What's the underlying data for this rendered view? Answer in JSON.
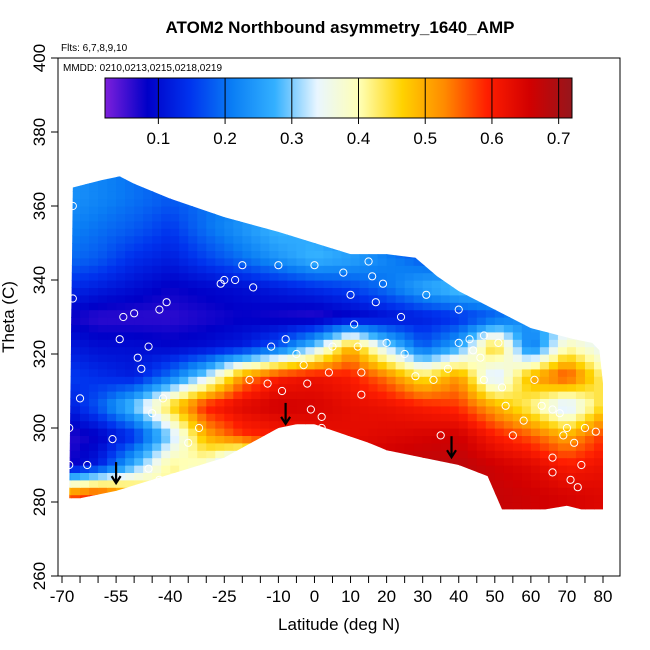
{
  "chart_data": {
    "type": "heatmap",
    "title": "ATOM2 Northbound asymmetry_1640_AMP",
    "flights_label": "Flts: 6,7,8,9,10",
    "dates_label": "MMDD: 0210,0213,0215,0218,0219",
    "xlabel": "Latitude (deg N)",
    "ylabel": "Theta (C)",
    "xlim": [
      -70,
      80
    ],
    "ylim": [
      260,
      400
    ],
    "x_ticks": [
      "-70",
      "-55",
      "-40",
      "-25",
      "-10",
      "0",
      "10",
      "20",
      "30",
      "40",
      "50",
      "60",
      "70",
      "80"
    ],
    "x_tick_values": [
      -70,
      -55,
      -40,
      -25,
      -10,
      0,
      10,
      20,
      30,
      40,
      50,
      60,
      70,
      80
    ],
    "x_minor_ticks": [
      -65,
      -60,
      -50,
      -45,
      -35,
      -30,
      -20,
      -15,
      -5,
      5,
      15,
      25,
      35,
      45,
      55,
      65,
      75
    ],
    "y_ticks": [
      "260",
      "280",
      "300",
      "320",
      "340",
      "360",
      "380",
      "400"
    ],
    "y_tick_values": [
      260,
      280,
      300,
      320,
      340,
      360,
      380,
      400
    ],
    "colorbar": {
      "range": [
        0.02,
        0.72
      ],
      "ticks": [
        "0.1",
        "0.2",
        "0.3",
        "0.4",
        "0.5",
        "0.6",
        "0.7"
      ],
      "tick_values": [
        0.1,
        0.2,
        0.3,
        0.4,
        0.5,
        0.6,
        0.7
      ],
      "color_stops": [
        "#7d1fdb",
        "#0000c8",
        "#0033ee",
        "#0a7ef5",
        "#33b0ff",
        "#e9f6ff",
        "#ffffb4",
        "#ffd200",
        "#ff8a00",
        "#ff1e00",
        "#d20000",
        "#96161c"
      ]
    },
    "domain": {
      "top": [
        [
          -67,
          365
        ],
        [
          -59,
          367
        ],
        [
          -54,
          368
        ],
        [
          -50,
          366
        ],
        [
          -40,
          362
        ],
        [
          -25,
          357
        ],
        [
          -10,
          353
        ],
        [
          0,
          350
        ],
        [
          10,
          347
        ],
        [
          20,
          347
        ],
        [
          28,
          346
        ],
        [
          34,
          341
        ],
        [
          40,
          337
        ],
        [
          50,
          332
        ],
        [
          60,
          327
        ],
        [
          72,
          324
        ],
        [
          77,
          323
        ],
        [
          79,
          321
        ],
        [
          80,
          312
        ]
      ],
      "bottom": [
        [
          80,
          278
        ],
        [
          74,
          278
        ],
        [
          70,
          279
        ],
        [
          64,
          278
        ],
        [
          52,
          278
        ],
        [
          48,
          287
        ],
        [
          40,
          290
        ],
        [
          30,
          292
        ],
        [
          20,
          294
        ],
        [
          15,
          296
        ],
        [
          9,
          298
        ],
        [
          0,
          301
        ],
        [
          -5,
          301
        ],
        [
          -10,
          300
        ],
        [
          -25,
          292
        ],
        [
          -35,
          289
        ],
        [
          -45,
          286
        ],
        [
          -55,
          283
        ],
        [
          -65,
          281
        ],
        [
          -68,
          281
        ]
      ]
    },
    "field_bands": [
      {
        "theta": 362,
        "values": [
          0.24,
          0.22,
          0.2,
          0.18,
          0.2,
          0.22,
          0.2,
          0.18,
          0.16,
          0.14,
          0.12,
          0.1,
          0.1,
          0.1,
          0.1,
          0.1
        ]
      },
      {
        "theta": 354,
        "values": [
          0.22,
          0.2,
          0.18,
          0.15,
          0.2,
          0.24,
          0.28,
          0.26,
          0.2,
          0.16,
          0.12,
          0.1,
          0.1,
          0.1,
          0.1,
          0.1
        ]
      },
      {
        "theta": 346,
        "values": [
          0.2,
          0.18,
          0.14,
          0.12,
          0.16,
          0.2,
          0.24,
          0.28,
          0.26,
          0.22,
          0.18,
          0.14,
          0.12,
          0.1,
          0.1,
          0.1
        ]
      },
      {
        "theta": 338,
        "values": [
          0.14,
          0.12,
          0.1,
          0.08,
          0.09,
          0.1,
          0.12,
          0.14,
          0.16,
          0.2,
          0.26,
          0.3,
          0.28,
          0.2,
          0.16,
          0.14
        ]
      },
      {
        "theta": 330,
        "values": [
          0.08,
          0.06,
          0.06,
          0.06,
          0.07,
          0.08,
          0.07,
          0.06,
          0.08,
          0.1,
          0.12,
          0.14,
          0.18,
          0.24,
          0.3,
          0.32
        ]
      },
      {
        "theta": 322,
        "values": [
          0.12,
          0.1,
          0.1,
          0.09,
          0.1,
          0.12,
          0.18,
          0.3,
          0.5,
          0.32,
          0.18,
          0.26,
          0.48,
          0.2,
          0.4,
          0.34
        ]
      },
      {
        "theta": 314,
        "values": [
          0.16,
          0.14,
          0.12,
          0.2,
          0.32,
          0.52,
          0.6,
          0.62,
          0.6,
          0.54,
          0.44,
          0.52,
          0.3,
          0.5,
          0.58,
          0.42
        ]
      },
      {
        "theta": 306,
        "values": [
          0.1,
          0.18,
          0.3,
          0.46,
          0.6,
          0.64,
          0.66,
          0.65,
          0.63,
          0.62,
          0.6,
          0.58,
          0.5,
          0.42,
          0.3,
          0.46
        ]
      },
      {
        "theta": 298,
        "values": [
          0.06,
          0.08,
          0.14,
          0.3,
          0.5,
          0.58,
          0.6,
          0.62,
          0.63,
          0.64,
          0.65,
          0.66,
          0.6,
          0.56,
          0.5,
          0.58
        ]
      },
      {
        "theta": 290,
        "values": [
          0.06,
          0.12,
          0.28,
          0.42,
          0.38,
          0.2,
          0.52,
          0.64,
          0.66,
          0.67,
          0.68,
          0.68,
          0.66,
          0.64,
          0.6,
          0.62
        ]
      },
      {
        "theta": 282,
        "values": [
          0.55,
          0.6,
          0.5,
          0.4,
          0.3,
          0.2,
          0.4,
          0.6,
          0.65,
          0.67,
          0.68,
          0.68,
          0.67,
          0.66,
          0.65,
          0.64
        ]
      }
    ],
    "field_lats": [
      -70,
      -60,
      -50,
      -40,
      -30,
      -20,
      -10,
      0,
      10,
      20,
      30,
      40,
      50,
      60,
      70,
      80
    ],
    "sample_points": [
      [
        -67,
        360
      ],
      [
        -67,
        335
      ],
      [
        -68,
        300
      ],
      [
        -65,
        308
      ],
      [
        -68,
        290
      ],
      [
        -63,
        290
      ],
      [
        -56,
        297
      ],
      [
        -53,
        330
      ],
      [
        -50,
        331
      ],
      [
        -54,
        324
      ],
      [
        -48,
        316
      ],
      [
        -49,
        319
      ],
      [
        -46,
        322
      ],
      [
        -43,
        332
      ],
      [
        -41,
        334
      ],
      [
        -42,
        308
      ],
      [
        -45,
        304
      ],
      [
        -46,
        289
      ],
      [
        -43,
        286
      ],
      [
        -35,
        296
      ],
      [
        -32,
        300
      ],
      [
        -26,
        339
      ],
      [
        -25,
        340
      ],
      [
        -22,
        340
      ],
      [
        -20,
        344
      ],
      [
        -17,
        338
      ],
      [
        -18,
        313
      ],
      [
        -13,
        312
      ],
      [
        -10,
        344
      ],
      [
        -8,
        324
      ],
      [
        -12,
        322
      ],
      [
        -5,
        320
      ],
      [
        -9,
        310
      ],
      [
        -3,
        317
      ],
      [
        0,
        344
      ],
      [
        -2,
        312
      ],
      [
        -1,
        305
      ],
      [
        2,
        300
      ],
      [
        2,
        303
      ],
      [
        5,
        322
      ],
      [
        4,
        315
      ],
      [
        8,
        342
      ],
      [
        10,
        336
      ],
      [
        11,
        328
      ],
      [
        12,
        322
      ],
      [
        13,
        315
      ],
      [
        13,
        309
      ],
      [
        15,
        345
      ],
      [
        16,
        341
      ],
      [
        19,
        339
      ],
      [
        17,
        334
      ],
      [
        20,
        323
      ],
      [
        24,
        330
      ],
      [
        25,
        320
      ],
      [
        28,
        314
      ],
      [
        31,
        336
      ],
      [
        33,
        313
      ],
      [
        35,
        298
      ],
      [
        34,
        290
      ],
      [
        37,
        316
      ],
      [
        40,
        332
      ],
      [
        40,
        323
      ],
      [
        43,
        324
      ],
      [
        44,
        321
      ],
      [
        46,
        319
      ],
      [
        47,
        325
      ],
      [
        47,
        313
      ],
      [
        51,
        323
      ],
      [
        52,
        311
      ],
      [
        53,
        306
      ],
      [
        55,
        298
      ],
      [
        58,
        302
      ],
      [
        61,
        313
      ],
      [
        63,
        306
      ],
      [
        66,
        292
      ],
      [
        66,
        288
      ],
      [
        66,
        305
      ],
      [
        68,
        304
      ],
      [
        69,
        298
      ],
      [
        70,
        300
      ],
      [
        72,
        296
      ],
      [
        71,
        286
      ],
      [
        73,
        284
      ],
      [
        74,
        290
      ],
      [
        75,
        300
      ],
      [
        78,
        299
      ]
    ],
    "arrows": [
      [
        -55,
        287
      ],
      [
        -8,
        303
      ],
      [
        38,
        294
      ]
    ]
  }
}
